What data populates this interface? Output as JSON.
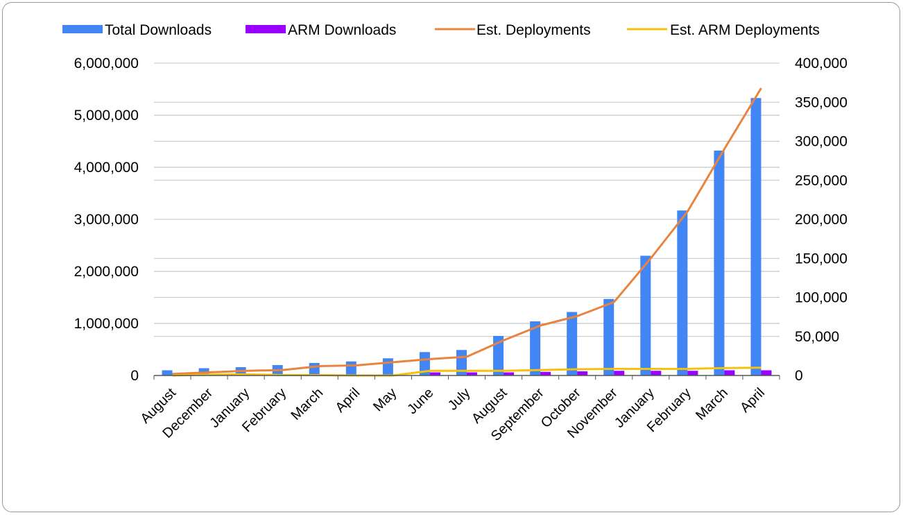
{
  "chart_data": {
    "type": "bar",
    "categories": [
      "August",
      "December",
      "January",
      "February",
      "March",
      "April",
      "May",
      "June",
      "July",
      "August",
      "September",
      "October",
      "November",
      "January",
      "February",
      "March",
      "April"
    ],
    "series": [
      {
        "name": "Total Downloads",
        "type": "bar",
        "axis": "left",
        "color": "#4285f4",
        "values": [
          100000,
          140000,
          160000,
          200000,
          240000,
          270000,
          330000,
          450000,
          490000,
          760000,
          1040000,
          1220000,
          1470000,
          2300000,
          3170000,
          4320000,
          5330000
        ]
      },
      {
        "name": "ARM Downloads",
        "type": "bar",
        "axis": "left",
        "color": "#9900ff",
        "values": [
          0,
          0,
          0,
          0,
          0,
          0,
          0,
          60000,
          60000,
          60000,
          70000,
          80000,
          90000,
          90000,
          90000,
          100000,
          100000
        ]
      },
      {
        "name": "Est. Deployments",
        "type": "line",
        "axis": "right",
        "color": "#e8843f",
        "values": [
          2000,
          4000,
          6000,
          7000,
          12000,
          13000,
          17000,
          21000,
          24000,
          45000,
          64000,
          76000,
          94000,
          150000,
          210000,
          290000,
          368000
        ]
      },
      {
        "name": "Est. ARM Deployments",
        "type": "line",
        "axis": "right",
        "color": "#f4c20d",
        "values": [
          0,
          1000,
          1500,
          500,
          500,
          0,
          0,
          6000,
          6000,
          6000,
          7000,
          8000,
          8500,
          8500,
          8500,
          9500,
          10000
        ]
      }
    ],
    "ylim_left": [
      0,
      6000000
    ],
    "ylim_right": [
      0,
      400000
    ],
    "left_ticks": [
      {
        "value": 0,
        "label": "0"
      },
      {
        "value": 1000000,
        "label": "1,000,000"
      },
      {
        "value": 2000000,
        "label": "2,000,000"
      },
      {
        "value": 3000000,
        "label": "3,000,000"
      },
      {
        "value": 4000000,
        "label": "4,000,000"
      },
      {
        "value": 5000000,
        "label": "5,000,000"
      },
      {
        "value": 6000000,
        "label": "6,000,000"
      }
    ],
    "right_ticks": [
      {
        "value": 0,
        "label": "0"
      },
      {
        "value": 50000,
        "label": "50,000"
      },
      {
        "value": 100000,
        "label": "100,000"
      },
      {
        "value": 150000,
        "label": "150,000"
      },
      {
        "value": 200000,
        "label": "200,000"
      },
      {
        "value": 250000,
        "label": "250,000"
      },
      {
        "value": 300000,
        "label": "300,000"
      },
      {
        "value": 350000,
        "label": "350,000"
      },
      {
        "value": 400000,
        "label": "400,000"
      }
    ],
    "grid": true,
    "legend_position": "top",
    "title": "",
    "xlabel": "",
    "ylabel": ""
  }
}
